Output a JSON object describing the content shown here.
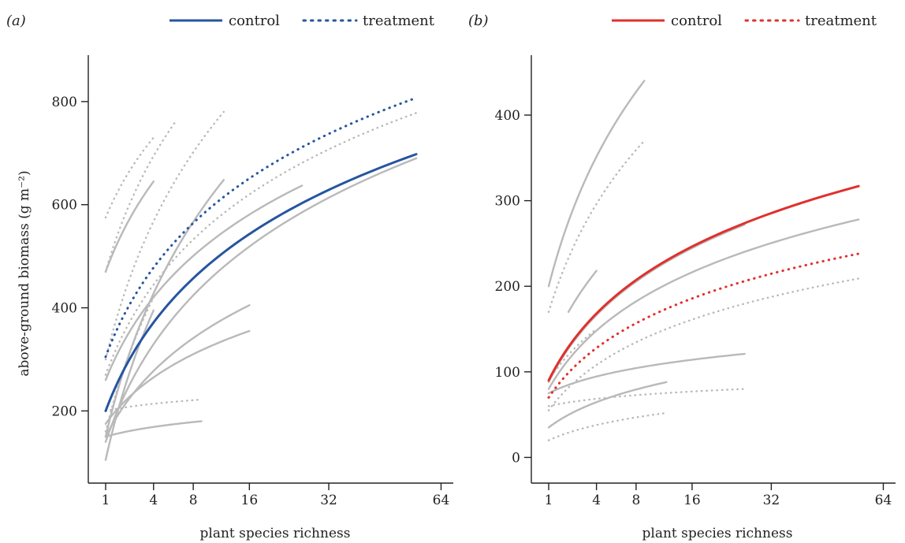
{
  "chart_data": [
    {
      "panel_label": "(a)",
      "type": "line",
      "xlabel": "plant species richness",
      "ylabel": "above-ground biomass (g m⁻²)",
      "x_scale": "sqrt",
      "xticks": [
        1,
        4,
        8,
        16,
        32,
        64
      ],
      "yticks": [
        200,
        400,
        600,
        800
      ],
      "xlim": [
        0,
        66
      ],
      "ylim": [
        60,
        890
      ],
      "grid": false,
      "legend": {
        "placement": "top-right",
        "entries": [
          {
            "label": "control",
            "style": "solid",
            "color": "#2555a0"
          },
          {
            "label": "treatment",
            "style": "dotted",
            "color": "#2555a0"
          }
        ]
      },
      "series": [
        {
          "name": "control",
          "style": "solid",
          "color": "#2555a0",
          "x_range": [
            1,
            56
          ],
          "y_range": [
            200,
            698
          ]
        },
        {
          "name": "treatment",
          "style": "dotted",
          "color": "#2555a0",
          "x_range": [
            1,
            55
          ],
          "y_range": [
            305,
            805
          ]
        }
      ],
      "background_curves": [
        {
          "style": "solid",
          "x_range": [
            1,
            4
          ],
          "y_range": [
            470,
            645
          ]
        },
        {
          "style": "solid",
          "x_range": [
            1,
            12
          ],
          "y_range": [
            150,
            648
          ]
        },
        {
          "style": "solid",
          "x_range": [
            1,
            26
          ],
          "y_range": [
            260,
            637
          ]
        },
        {
          "style": "solid",
          "x_range": [
            1,
            56
          ],
          "y_range": [
            140,
            690
          ]
        },
        {
          "style": "solid",
          "x_range": [
            1,
            16
          ],
          "y_range": [
            150,
            405
          ]
        },
        {
          "style": "solid",
          "x_range": [
            1,
            16
          ],
          "y_range": [
            175,
            355
          ]
        },
        {
          "style": "solid",
          "x_range": [
            1,
            9
          ],
          "y_range": [
            150,
            180
          ]
        },
        {
          "style": "solid",
          "x_range": [
            1,
            4
          ],
          "y_range": [
            105,
            395
          ]
        },
        {
          "style": "dotted",
          "x_range": [
            1,
            4
          ],
          "y_range": [
            575,
            730
          ]
        },
        {
          "style": "dotted",
          "x_range": [
            1,
            6
          ],
          "y_range": [
            470,
            760
          ]
        },
        {
          "style": "dotted",
          "x_range": [
            1,
            12
          ],
          "y_range": [
            300,
            780
          ]
        },
        {
          "style": "dotted",
          "x_range": [
            1,
            56
          ],
          "y_range": [
            270,
            778
          ]
        },
        {
          "style": "dotted",
          "x_range": [
            1,
            9
          ],
          "y_range": [
            200,
            222
          ]
        },
        {
          "style": "dotted",
          "x_range": [
            1,
            4
          ],
          "y_range": [
            160,
            420
          ]
        }
      ]
    },
    {
      "panel_label": "(b)",
      "type": "line",
      "xlabel": "plant species richness",
      "ylabel": "",
      "x_scale": "sqrt",
      "xticks": [
        1,
        4,
        8,
        16,
        32,
        64
      ],
      "yticks": [
        0,
        100,
        200,
        300,
        400
      ],
      "xlim": [
        0,
        66
      ],
      "ylim": [
        -30,
        470
      ],
      "grid": false,
      "legend": {
        "placement": "top-right",
        "entries": [
          {
            "label": "control",
            "style": "solid",
            "color": "#e0302c"
          },
          {
            "label": "treatment",
            "style": "dotted",
            "color": "#e0302c"
          }
        ]
      },
      "series": [
        {
          "name": "control",
          "style": "solid",
          "color": "#e0302c",
          "x_range": [
            1,
            56
          ],
          "y_range": [
            90,
            317
          ]
        },
        {
          "name": "treatment",
          "style": "dotted",
          "color": "#e0302c",
          "x_range": [
            1,
            56
          ],
          "y_range": [
            70,
            238
          ]
        }
      ],
      "background_curves": [
        {
          "style": "solid",
          "x_range": [
            1,
            9
          ],
          "y_range": [
            200,
            440
          ]
        },
        {
          "style": "solid",
          "x_range": [
            2,
            4
          ],
          "y_range": [
            170,
            218
          ]
        },
        {
          "style": "solid",
          "x_range": [
            1,
            26
          ],
          "y_range": [
            88,
            272
          ]
        },
        {
          "style": "solid",
          "x_range": [
            1,
            56
          ],
          "y_range": [
            80,
            278
          ]
        },
        {
          "style": "solid",
          "x_range": [
            1,
            26
          ],
          "y_range": [
            75,
            121
          ]
        },
        {
          "style": "solid",
          "x_range": [
            1,
            12
          ],
          "y_range": [
            35,
            88
          ]
        },
        {
          "style": "dotted",
          "x_range": [
            1,
            9
          ],
          "y_range": [
            170,
            370
          ]
        },
        {
          "style": "dotted",
          "x_range": [
            1,
            56
          ],
          "y_range": [
            55,
            209
          ]
        },
        {
          "style": "dotted",
          "x_range": [
            1,
            26
          ],
          "y_range": [
            60,
            80
          ]
        },
        {
          "style": "dotted",
          "x_range": [
            1,
            12
          ],
          "y_range": [
            20,
            52
          ]
        },
        {
          "style": "dotted",
          "x_range": [
            1,
            4
          ],
          "y_range": [
            90,
            150
          ]
        }
      ]
    }
  ]
}
